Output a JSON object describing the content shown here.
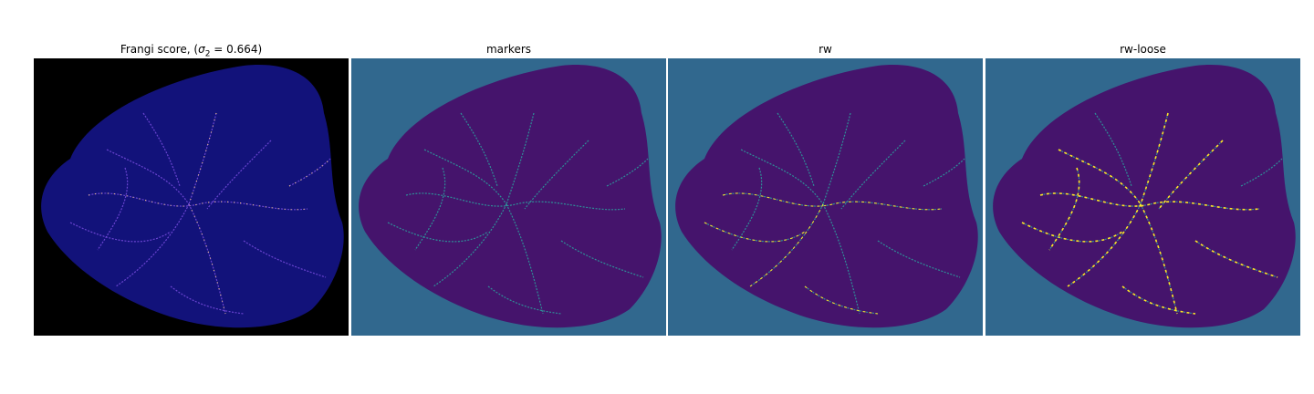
{
  "figure": {
    "panels": [
      {
        "id": "frangi",
        "title_prefix": "Frangi score, (",
        "title_sigma": "σ",
        "title_sub": "2",
        "title_suffix": " = 0.664)",
        "background": "#000000",
        "body": "#12127a",
        "vessel": "#7a4de0",
        "highlight": "#ffd27a"
      },
      {
        "id": "markers",
        "title": "markers",
        "background": "#31688e",
        "body": "#45146c",
        "vessel": "#2aa4a0",
        "highlight": "#35b779"
      },
      {
        "id": "rw",
        "title": "rw",
        "background": "#31688e",
        "body": "#45146c",
        "vessel": "#2aa4a0",
        "highlight": "#fde725"
      },
      {
        "id": "rw-loose",
        "title": "rw-loose",
        "background": "#31688e",
        "body": "#45146c",
        "vessel": "#2aa4a0",
        "highlight": "#fde725"
      }
    ]
  }
}
